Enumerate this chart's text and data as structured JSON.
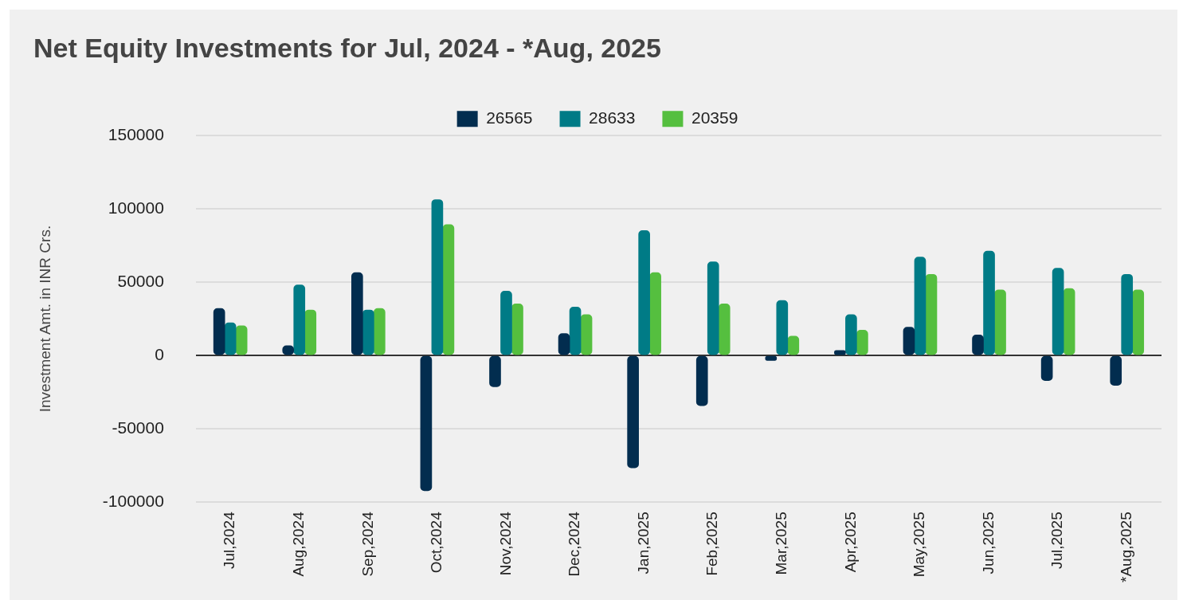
{
  "chart_data": {
    "type": "bar",
    "title": "Net Equity Investments for Jul, 2024 - *Aug, 2025",
    "ylabel": "Investment Amt. in INR Crs.",
    "categories": [
      "Jul,2024",
      "Aug,2024",
      "Sep,2024",
      "Oct,2024",
      "Nov,2024",
      "Dec,2024",
      "Jan,2025",
      "Feb,2025",
      "Mar,2025",
      "Apr,2025",
      "May,2025",
      "Jun,2025",
      "Jul,2025",
      "*Aug,2025"
    ],
    "series": [
      {
        "name": "26565",
        "color": "#022d4f",
        "values": [
          32000,
          6600,
          56400,
          -92200,
          -21300,
          14900,
          -76600,
          -34200,
          -3400,
          3400,
          19300,
          14000,
          -17200,
          -20400
        ]
      },
      {
        "name": "28633",
        "color": "#007b86",
        "values": [
          22200,
          48000,
          31000,
          106200,
          43800,
          33000,
          85100,
          63800,
          37400,
          27800,
          67000,
          71100,
          59400,
          55300
        ]
      },
      {
        "name": "20359",
        "color": "#55bf3f",
        "values": [
          20200,
          31000,
          32000,
          89200,
          35100,
          27800,
          56400,
          35100,
          13100,
          17200,
          55300,
          44700,
          45600,
          44700
        ]
      }
    ],
    "ylim": [
      -100000,
      150000
    ],
    "yticks": [
      -100000,
      -50000,
      0,
      50000,
      100000,
      150000
    ],
    "grid": "y",
    "legend": "top"
  }
}
